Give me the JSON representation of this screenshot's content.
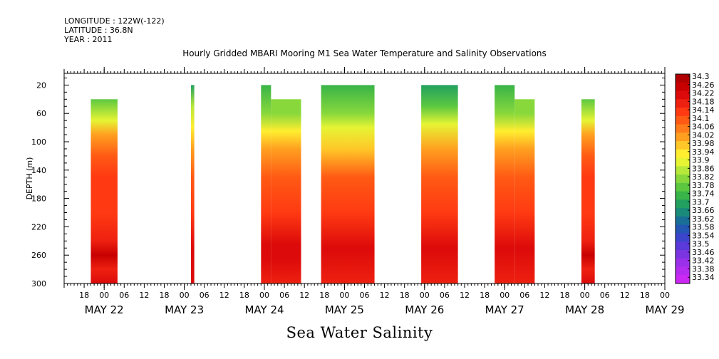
{
  "header": {
    "longitude": "LONGITUDE : 122W(-122)",
    "latitude": "LATITUDE : 36.8N",
    "year": "YEAR : 2011"
  },
  "plot_title": "Hourly Gridded MBARI Mooring M1 Sea Water Temperature and Salinity Observations",
  "bottom_title": "Sea Water Salinity",
  "chart_data": {
    "type": "heatmap",
    "variable": "Sea Water Salinity",
    "ylabel": "DEPTH (m)",
    "ylim": [
      300,
      0
    ],
    "y_ticks": [
      20,
      60,
      100,
      140,
      180,
      220,
      260,
      300
    ],
    "x_hour_range": [
      -12,
      168
    ],
    "x_hour_ticks": [
      {
        "h": -6,
        "label": "18"
      },
      {
        "h": 0,
        "label": "00"
      },
      {
        "h": 6,
        "label": "06"
      },
      {
        "h": 12,
        "label": "12"
      },
      {
        "h": 18,
        "label": "18"
      },
      {
        "h": 24,
        "label": "00"
      },
      {
        "h": 30,
        "label": "06"
      },
      {
        "h": 36,
        "label": "12"
      },
      {
        "h": 42,
        "label": "18"
      },
      {
        "h": 48,
        "label": "00"
      },
      {
        "h": 54,
        "label": "06"
      },
      {
        "h": 60,
        "label": "12"
      },
      {
        "h": 66,
        "label": "18"
      },
      {
        "h": 72,
        "label": "00"
      },
      {
        "h": 78,
        "label": "06"
      },
      {
        "h": 84,
        "label": "12"
      },
      {
        "h": 90,
        "label": "18"
      },
      {
        "h": 96,
        "label": "00"
      },
      {
        "h": 102,
        "label": "06"
      },
      {
        "h": 108,
        "label": "12"
      },
      {
        "h": 114,
        "label": "18"
      },
      {
        "h": 120,
        "label": "00"
      },
      {
        "h": 126,
        "label": "06"
      },
      {
        "h": 132,
        "label": "12"
      },
      {
        "h": 138,
        "label": "18"
      },
      {
        "h": 144,
        "label": "00"
      },
      {
        "h": 150,
        "label": "06"
      },
      {
        "h": 156,
        "label": "12"
      },
      {
        "h": 162,
        "label": "18"
      },
      {
        "h": 168,
        "label": "00"
      },
      {
        "h": 174,
        "label": "06"
      },
      {
        "h": 180,
        "label": "12"
      }
    ],
    "day_labels": [
      {
        "h": 0,
        "label": "MAY 22"
      },
      {
        "h": 24,
        "label": "MAY 23"
      },
      {
        "h": 48,
        "label": "MAY 24"
      },
      {
        "h": 72,
        "label": "MAY 25"
      },
      {
        "h": 96,
        "label": "MAY 26"
      },
      {
        "h": 120,
        "label": "MAY 27"
      },
      {
        "h": 144,
        "label": "MAY 28"
      },
      {
        "h": 168,
        "label": "MAY 29"
      }
    ],
    "colorbar_levels": [
      "34.3",
      "34.26",
      "34.22",
      "34.18",
      "34.14",
      "34.1",
      "34.06",
      "34.02",
      "33.98",
      "33.94",
      "33.9",
      "33.86",
      "33.82",
      "33.78",
      "33.74",
      "33.7",
      "33.66",
      "33.62",
      "33.58",
      "33.54",
      "33.5",
      "33.46",
      "33.42",
      "33.38",
      "33.34"
    ],
    "colorbar_colors": [
      "#b00000",
      "#c80000",
      "#dc0a0a",
      "#ee2010",
      "#ff3a12",
      "#ff5a14",
      "#ff7c1a",
      "#ffa020",
      "#ffc828",
      "#ffee30",
      "#e6f434",
      "#b8e83a",
      "#88d83c",
      "#5cc840",
      "#38b448",
      "#22a060",
      "#1a8a7a",
      "#186e96",
      "#2456b4",
      "#3a44cc",
      "#5a3ada",
      "#7a34e2",
      "#9a30ea",
      "#b42cf0",
      "#cc28f4"
    ],
    "blocks": [
      {
        "start_h": -4,
        "end_h": 4,
        "top_depth": 40,
        "profile": "A"
      },
      {
        "start_h": 26,
        "end_h": 27,
        "top_depth": 20,
        "profile": "B"
      },
      {
        "start_h": 47,
        "end_h": 50,
        "top_depth": 20,
        "profile": "C"
      },
      {
        "start_h": 50,
        "end_h": 59,
        "top_depth": 40,
        "profile": "C"
      },
      {
        "start_h": 65,
        "end_h": 81,
        "top_depth": 20,
        "profile": "D"
      },
      {
        "start_h": 95,
        "end_h": 106,
        "top_depth": 20,
        "profile": "E"
      },
      {
        "start_h": 117,
        "end_h": 123,
        "top_depth": 20,
        "profile": "F"
      },
      {
        "start_h": 123,
        "end_h": 129,
        "top_depth": 40,
        "profile": "F"
      },
      {
        "start_h": 143,
        "end_h": 147,
        "top_depth": 40,
        "profile": "A"
      }
    ],
    "profiles": {
      "A": [
        {
          "d": 40,
          "v": 33.78
        },
        {
          "d": 70,
          "v": 33.92
        },
        {
          "d": 90,
          "v": 34.04
        },
        {
          "d": 120,
          "v": 34.1
        },
        {
          "d": 150,
          "v": 34.14
        },
        {
          "d": 200,
          "v": 34.16
        },
        {
          "d": 240,
          "v": 34.2
        },
        {
          "d": 260,
          "v": 34.26
        },
        {
          "d": 280,
          "v": 34.2
        },
        {
          "d": 300,
          "v": 34.22
        }
      ],
      "B": [
        {
          "d": 20,
          "v": 33.7
        },
        {
          "d": 50,
          "v": 33.86
        },
        {
          "d": 80,
          "v": 33.96
        },
        {
          "d": 110,
          "v": 34.04
        },
        {
          "d": 150,
          "v": 34.12
        },
        {
          "d": 200,
          "v": 34.16
        },
        {
          "d": 250,
          "v": 34.24
        },
        {
          "d": 300,
          "v": 34.22
        }
      ],
      "C": [
        {
          "d": 20,
          "v": 33.76
        },
        {
          "d": 60,
          "v": 33.82
        },
        {
          "d": 85,
          "v": 33.94
        },
        {
          "d": 110,
          "v": 34.04
        },
        {
          "d": 150,
          "v": 34.12
        },
        {
          "d": 200,
          "v": 34.16
        },
        {
          "d": 245,
          "v": 34.22
        },
        {
          "d": 265,
          "v": 34.24
        },
        {
          "d": 300,
          "v": 34.2
        }
      ],
      "D": [
        {
          "d": 20,
          "v": 33.76
        },
        {
          "d": 60,
          "v": 33.84
        },
        {
          "d": 80,
          "v": 33.92
        },
        {
          "d": 110,
          "v": 34.0
        },
        {
          "d": 150,
          "v": 34.1
        },
        {
          "d": 200,
          "v": 34.16
        },
        {
          "d": 250,
          "v": 34.24
        },
        {
          "d": 300,
          "v": 34.2
        }
      ],
      "E": [
        {
          "d": 20,
          "v": 33.7
        },
        {
          "d": 50,
          "v": 33.78
        },
        {
          "d": 75,
          "v": 33.9
        },
        {
          "d": 110,
          "v": 34.04
        },
        {
          "d": 150,
          "v": 34.12
        },
        {
          "d": 200,
          "v": 34.16
        },
        {
          "d": 250,
          "v": 34.24
        },
        {
          "d": 300,
          "v": 34.2
        }
      ],
      "F": [
        {
          "d": 20,
          "v": 33.74
        },
        {
          "d": 60,
          "v": 33.82
        },
        {
          "d": 85,
          "v": 33.94
        },
        {
          "d": 110,
          "v": 34.04
        },
        {
          "d": 150,
          "v": 34.12
        },
        {
          "d": 200,
          "v": 34.16
        },
        {
          "d": 250,
          "v": 34.22
        },
        {
          "d": 300,
          "v": 34.2
        }
      ]
    }
  }
}
